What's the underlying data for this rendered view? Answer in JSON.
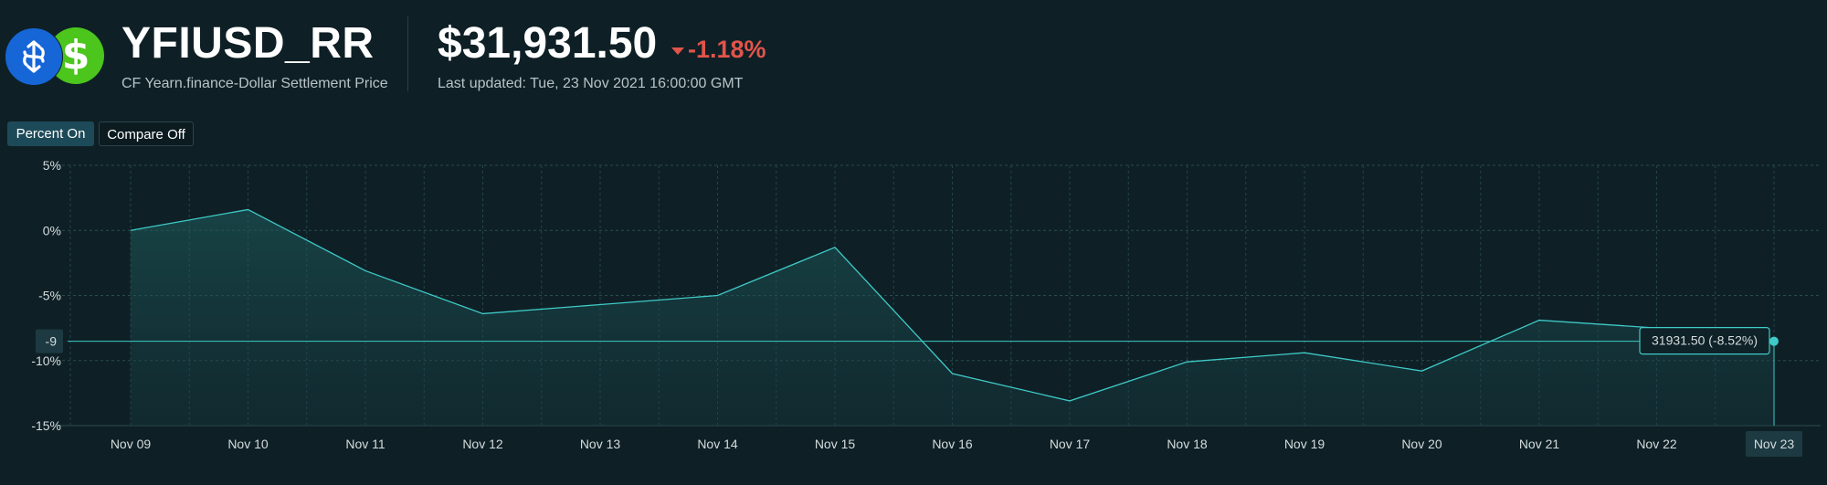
{
  "header": {
    "ticker": "YFIUSD_RR",
    "subtitle": "CF Yearn.finance-Dollar Settlement Price",
    "price": "$31,931.50",
    "change": "-1.18%",
    "last_updated": "Last updated: Tue, 23 Nov 2021 16:00:00 GMT",
    "icons": [
      "yfi-coin-icon",
      "usd-coin-icon"
    ],
    "change_color": "#e2544a",
    "usd_icon_symbol": "$"
  },
  "toggles": {
    "percent": "Percent On",
    "compare": "Compare Off"
  },
  "chart_data": {
    "type": "area",
    "x": [
      "Nov 09",
      "Nov 10",
      "Nov 11",
      "Nov 12",
      "Nov 13",
      "Nov 14",
      "Nov 15",
      "Nov 16",
      "Nov 17",
      "Nov 18",
      "Nov 19",
      "Nov 20",
      "Nov 21",
      "Nov 22",
      "Nov 23"
    ],
    "series": [
      {
        "values": [
          0.0,
          1.6,
          -3.1,
          -6.4,
          -5.7,
          -5.0,
          -1.3,
          -11.0,
          -13.1,
          -10.1,
          -9.4,
          -10.8,
          -6.9,
          -7.5,
          -8.52
        ]
      }
    ],
    "yticks": [
      "5%",
      "0%",
      "-5%",
      "-10%",
      "-15%"
    ],
    "ylim": [
      -15,
      5
    ],
    "grid": true,
    "line_color": "#3fc9c7",
    "crosshair": {
      "y_label": "-9",
      "x_label": "Nov 23",
      "tooltip": "31931.50 (-8.52%)"
    }
  }
}
